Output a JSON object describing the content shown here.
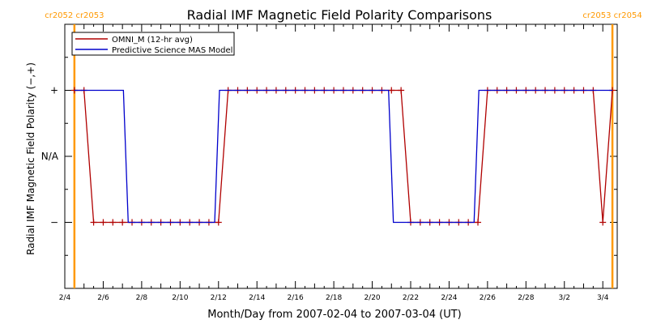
{
  "chart_data": {
    "type": "line",
    "title": "Radial IMF Magnetic Field Polarity Comparisons",
    "xlabel": "Month/Day from 2007-02-04 to 2007-03-04 (UT)",
    "ylabel": "Radial IMF Magnetic Field Polarity (−,+)",
    "x_tick_labels": [
      "2/4",
      "2/6",
      "2/8",
      "2/10",
      "2/12",
      "2/14",
      "2/16",
      "2/18",
      "2/20",
      "2/22",
      "2/24",
      "2/26",
      "2/28",
      "3/2",
      "3/4"
    ],
    "y_categories": [
      {
        "label": "+",
        "value": 1
      },
      {
        "label": "N/A",
        "value": 0
      },
      {
        "label": "−",
        "value": -1
      }
    ],
    "xlim_days": [
      0,
      28.75
    ],
    "ylim": [
      -2,
      2
    ],
    "rotation_markers": [
      {
        "day": 0.5,
        "label": "cr2052 cr2053",
        "position": "left"
      },
      {
        "day": 28.5,
        "label": "cr2053 cr2054",
        "position": "right"
      }
    ],
    "legend": {
      "position": "top-left"
    },
    "series": [
      {
        "name": "OMNI_M (12-hr avg)",
        "color": "#b00000",
        "marker": "plus",
        "points": [
          [
            0.5,
            1
          ],
          [
            1.0,
            1
          ],
          [
            1.5,
            -1
          ],
          [
            2.0,
            -1
          ],
          [
            2.5,
            -1
          ],
          [
            3.0,
            -1
          ],
          [
            3.5,
            -1
          ],
          [
            4.0,
            -1
          ],
          [
            4.5,
            -1
          ],
          [
            5.0,
            -1
          ],
          [
            5.5,
            -1
          ],
          [
            6.0,
            -1
          ],
          [
            6.5,
            -1
          ],
          [
            7.0,
            -1
          ],
          [
            7.5,
            -1
          ],
          [
            8.0,
            -1
          ],
          [
            8.5,
            1
          ],
          [
            9.0,
            1
          ],
          [
            9.5,
            1
          ],
          [
            10.0,
            1
          ],
          [
            10.5,
            1
          ],
          [
            11.0,
            1
          ],
          [
            11.5,
            1
          ],
          [
            12.0,
            1
          ],
          [
            12.5,
            1
          ],
          [
            13.0,
            1
          ],
          [
            13.5,
            1
          ],
          [
            14.0,
            1
          ],
          [
            14.5,
            1
          ],
          [
            15.0,
            1
          ],
          [
            15.5,
            1
          ],
          [
            16.0,
            1
          ],
          [
            16.5,
            1
          ],
          [
            17.0,
            1
          ],
          [
            17.5,
            1
          ],
          [
            18.0,
            -1
          ],
          [
            18.5,
            -1
          ],
          [
            19.0,
            -1
          ],
          [
            19.5,
            -1
          ],
          [
            20.0,
            -1
          ],
          [
            20.5,
            -1
          ],
          [
            21.0,
            -1
          ],
          [
            21.5,
            -1
          ],
          [
            22.0,
            1
          ],
          [
            22.5,
            1
          ],
          [
            23.0,
            1
          ],
          [
            23.5,
            1
          ],
          [
            24.0,
            1
          ],
          [
            24.5,
            1
          ],
          [
            25.0,
            1
          ],
          [
            25.5,
            1
          ],
          [
            26.0,
            1
          ],
          [
            26.5,
            1
          ],
          [
            27.0,
            1
          ],
          [
            27.5,
            1
          ],
          [
            28.0,
            -1
          ],
          [
            28.5,
            1
          ]
        ]
      },
      {
        "name": "Predictive Science MAS Model",
        "color": "#0000cc",
        "marker": "none",
        "points": [
          [
            0.5,
            1
          ],
          [
            3.05,
            1
          ],
          [
            3.3,
            -1
          ],
          [
            7.8,
            -1
          ],
          [
            8.05,
            1
          ],
          [
            16.85,
            1
          ],
          [
            17.1,
            -1
          ],
          [
            21.3,
            -1
          ],
          [
            21.55,
            1
          ],
          [
            28.5,
            1
          ]
        ]
      }
    ]
  }
}
